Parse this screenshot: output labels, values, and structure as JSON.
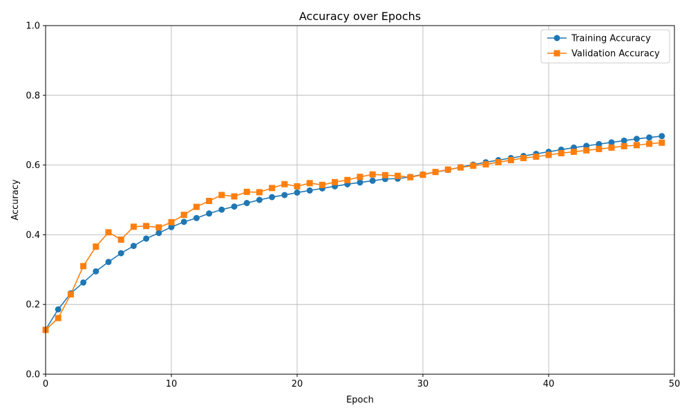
{
  "chart_data": {
    "type": "line",
    "title": "Accuracy over Epochs",
    "xlabel": "Epoch",
    "ylabel": "Accuracy",
    "xlim": [
      0,
      50
    ],
    "ylim": [
      0,
      1.0
    ],
    "x_ticks": [
      "0",
      "10",
      "20",
      "30",
      "40",
      "50"
    ],
    "y_ticks": [
      "0.0",
      "0.2",
      "0.4",
      "0.6",
      "0.8",
      "1.0"
    ],
    "grid": true,
    "legend_position": "top-right",
    "x": [
      0,
      1,
      2,
      3,
      4,
      5,
      6,
      7,
      8,
      9,
      10,
      11,
      12,
      13,
      14,
      15,
      16,
      17,
      18,
      19,
      20,
      21,
      22,
      23,
      24,
      25,
      26,
      27,
      28,
      29,
      30,
      31,
      32,
      33,
      34,
      35,
      36,
      37,
      38,
      39,
      40,
      41,
      42,
      43,
      44,
      45,
      46,
      47,
      48,
      49
    ],
    "series": [
      {
        "name": "Training Accuracy",
        "color": "#1f77b4",
        "marker": "circle",
        "values": [
          0.128,
          0.186,
          0.232,
          0.263,
          0.295,
          0.322,
          0.347,
          0.368,
          0.389,
          0.405,
          0.422,
          0.437,
          0.448,
          0.461,
          0.472,
          0.481,
          0.491,
          0.5,
          0.508,
          0.514,
          0.521,
          0.527,
          0.533,
          0.539,
          0.545,
          0.55,
          0.555,
          0.56,
          0.561,
          0.566,
          0.573,
          0.58,
          0.586,
          0.594,
          0.601,
          0.608,
          0.614,
          0.62,
          0.626,
          0.632,
          0.638,
          0.644,
          0.65,
          0.655,
          0.66,
          0.665,
          0.67,
          0.675,
          0.679,
          0.683
        ]
      },
      {
        "name": "Validation Accuracy",
        "color": "#ff7f0e",
        "marker": "square",
        "values": [
          0.127,
          0.161,
          0.229,
          0.31,
          0.366,
          0.407,
          0.386,
          0.423,
          0.425,
          0.421,
          0.436,
          0.457,
          0.48,
          0.497,
          0.514,
          0.51,
          0.523,
          0.522,
          0.534,
          0.545,
          0.539,
          0.548,
          0.543,
          0.551,
          0.557,
          0.566,
          0.573,
          0.571,
          0.569,
          0.565,
          0.572,
          0.58,
          0.587,
          0.593,
          0.598,
          0.602,
          0.608,
          0.614,
          0.62,
          0.624,
          0.629,
          0.634,
          0.638,
          0.642,
          0.646,
          0.65,
          0.654,
          0.657,
          0.661,
          0.664
        ]
      }
    ]
  }
}
